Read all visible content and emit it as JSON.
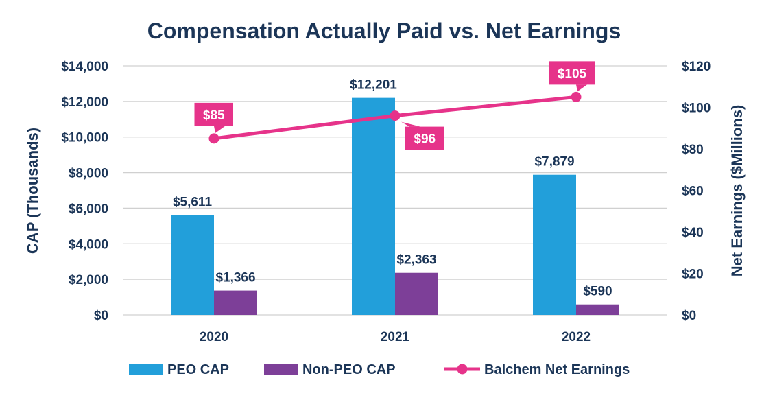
{
  "chart_data": {
    "type": "bar",
    "title": "Compensation Actually Paid vs. Net Earnings",
    "categories": [
      "2020",
      "2021",
      "2022"
    ],
    "ylabel": "CAP (Thousands)",
    "y2label": "Net Earnings ($Millions)",
    "ylim": [
      0,
      14000
    ],
    "y2lim": [
      0,
      120
    ],
    "yticks": [
      "$0",
      "$2,000",
      "$4,000",
      "$6,000",
      "$8,000",
      "$10,000",
      "$12,000",
      "$14,000"
    ],
    "y2ticks": [
      "$0",
      "$20",
      "$40",
      "$60",
      "$80",
      "$100",
      "$120"
    ],
    "series": [
      {
        "name": "PEO CAP",
        "type": "bar",
        "axis": "left",
        "color": "#229fda",
        "values": [
          5611,
          12201,
          7879
        ],
        "labels": [
          "$5,611",
          "$12,201",
          "$7,879"
        ]
      },
      {
        "name": "Non-PEO CAP",
        "type": "bar",
        "axis": "left",
        "color": "#7d3f98",
        "values": [
          1366,
          2363,
          590
        ],
        "labels": [
          "$1,366",
          "$2,363",
          "$590"
        ]
      },
      {
        "name": "Balchem Net Earnings",
        "type": "line",
        "axis": "right",
        "color": "#e6338a",
        "values": [
          85,
          96,
          105
        ],
        "labels": [
          "$85",
          "$96",
          "$105"
        ],
        "label_positions": [
          "above",
          "below-right",
          "above"
        ]
      }
    ],
    "grid": true,
    "legend": "bottom",
    "colors": {
      "text": "#1b3557",
      "grid": "#d0d0d0"
    }
  }
}
